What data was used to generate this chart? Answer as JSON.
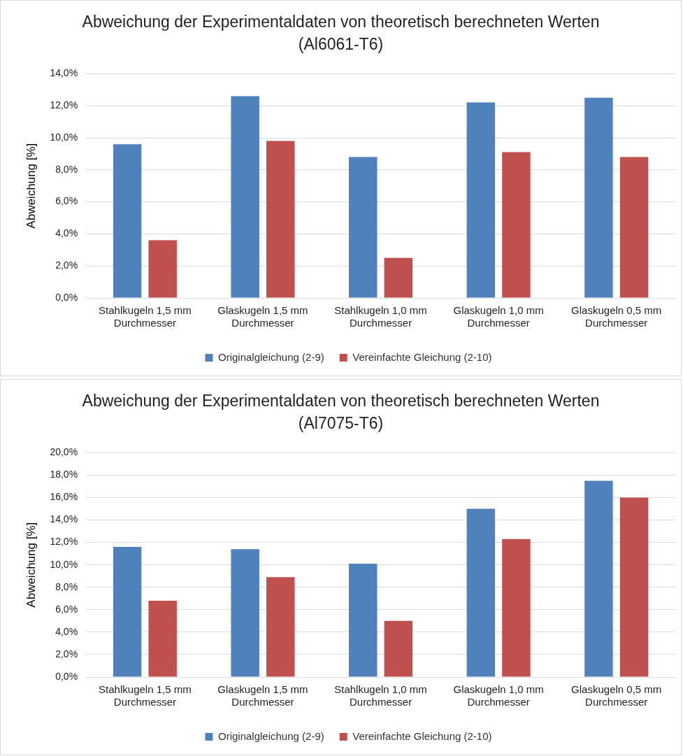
{
  "chart_data": [
    {
      "type": "bar",
      "title": "Abweichung der Experimentaldaten von theoretisch berechneten Werten  (Al6061-T6)",
      "ylabel": "Abweichung [%]",
      "categories": [
        "Stahlkugeln 1,5 mm Durchmesser",
        "Glaskugeln 1,5 mm Durchmesser",
        "Stahlkugeln 1,0 mm Durchmesser",
        "Glaskugeln 1,0 mm Durchmesser",
        "Glaskugeln 0,5 mm Durchmesser"
      ],
      "series": [
        {
          "name": "Originalgleichung (2-9)",
          "color": "#4f81bd",
          "values": [
            9.6,
            12.6,
            8.8,
            12.2,
            12.5
          ]
        },
        {
          "name": "Vereinfachte Gleichung (2-10)",
          "color": "#c0504d",
          "values": [
            3.6,
            9.8,
            2.5,
            9.1,
            8.8
          ]
        }
      ],
      "ylim": [
        0,
        14
      ],
      "yticks": [
        {
          "value": 0,
          "label": "0,0%"
        },
        {
          "value": 2,
          "label": "2,0%"
        },
        {
          "value": 4,
          "label": "4,0%"
        },
        {
          "value": 6,
          "label": "6,0%"
        },
        {
          "value": 8,
          "label": "8,0%"
        },
        {
          "value": 10,
          "label": "10,0%"
        },
        {
          "value": 12,
          "label": "12,0%"
        },
        {
          "value": 14,
          "label": "14,0%"
        }
      ],
      "grid": "y",
      "legend": "bottom"
    },
    {
      "type": "bar",
      "title": "Abweichung der Experimentaldaten von theoretisch berechneten Werten (Al7075-T6)",
      "ylabel": "Abweichung [%]",
      "categories": [
        "Stahlkugeln 1,5 mm Durchmesser",
        "Glaskugeln 1,5 mm Durchmesser",
        "Stahlkugeln 1,0 mm Durchmesser",
        "Glaskugeln 1,0 mm Durchmesser",
        "Glaskugeln 0,5 mm Durchmesser"
      ],
      "series": [
        {
          "name": "Originalgleichung (2-9)",
          "color": "#4f81bd",
          "values": [
            11.6,
            11.4,
            10.1,
            15.0,
            17.5
          ]
        },
        {
          "name": "Vereinfachte Gleichung (2-10)",
          "color": "#c0504d",
          "values": [
            6.8,
            8.9,
            5.0,
            12.3,
            16.0
          ]
        }
      ],
      "ylim": [
        0,
        20
      ],
      "yticks": [
        {
          "value": 0,
          "label": "0,0%"
        },
        {
          "value": 2,
          "label": "2,0%"
        },
        {
          "value": 4,
          "label": "4,0%"
        },
        {
          "value": 6,
          "label": "6,0%"
        },
        {
          "value": 8,
          "label": "8,0%"
        },
        {
          "value": 10,
          "label": "10,0%"
        },
        {
          "value": 12,
          "label": "12,0%"
        },
        {
          "value": 14,
          "label": "14,0%"
        },
        {
          "value": 16,
          "label": "16,0%"
        },
        {
          "value": 18,
          "label": "18,0%"
        },
        {
          "value": 20,
          "label": "20,0%"
        }
      ],
      "grid": "y",
      "legend": "bottom"
    }
  ]
}
